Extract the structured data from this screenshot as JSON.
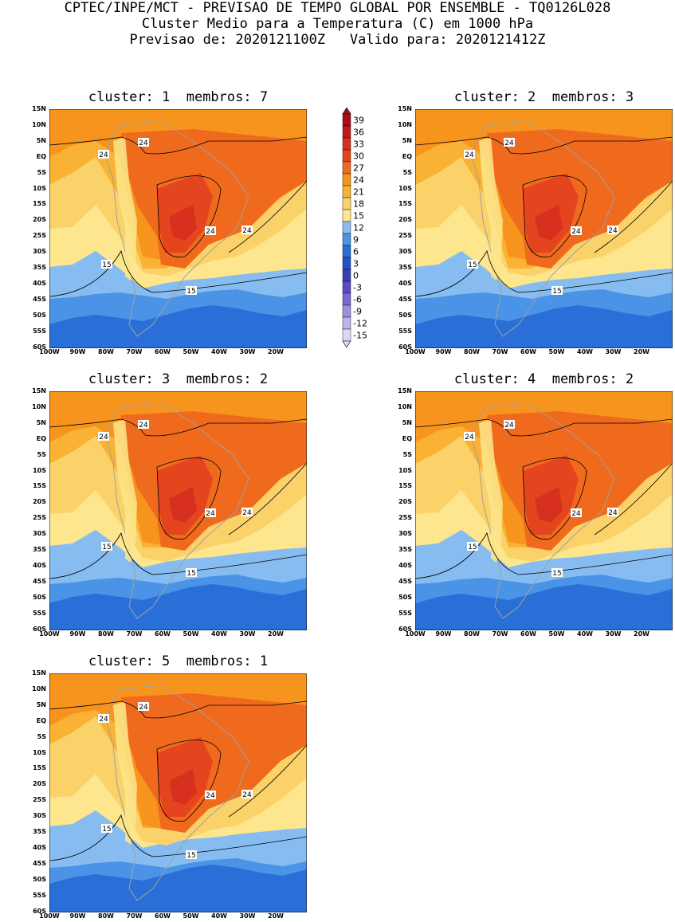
{
  "header": {
    "line1": "CPTEC/INPE/MCT - PREVISAO DE TEMPO GLOBAL POR ENSEMBLE - TQ0126L028",
    "line2": "Cluster Medio para a Temperatura (C) em 1000 hPa",
    "line3": "Previsao de: 2020121100Z   Valido para: 2020121412Z"
  },
  "panels": [
    {
      "title": "cluster: 1  membros: 7",
      "variant": 1
    },
    {
      "title": "cluster: 2  membros: 3",
      "variant": 2
    },
    {
      "title": "cluster: 3  membros: 2",
      "variant": 3
    },
    {
      "title": "cluster: 4  membros: 2",
      "variant": 4
    },
    {
      "title": "cluster: 5  membros: 1",
      "variant": 5
    }
  ],
  "lat_labels": [
    "15N",
    "10N",
    "5N",
    "EQ",
    "5S",
    "10S",
    "15S",
    "20S",
    "25S",
    "30S",
    "35S",
    "40S",
    "45S",
    "50S",
    "55S",
    "60S"
  ],
  "lon_labels": [
    "100W",
    "90W",
    "80W",
    "70W",
    "60W",
    "50W",
    "40W",
    "30W",
    "20W"
  ],
  "contour_labels": {
    "warm": "24",
    "cool": "15"
  },
  "colorbar": {
    "levels": [
      "39",
      "36",
      "33",
      "30",
      "27",
      "24",
      "21",
      "18",
      "15",
      "12",
      "9",
      "6",
      "3",
      "0",
      "-3",
      "-6",
      "-9",
      "-12",
      "-15"
    ],
    "colors": [
      "#a50f15",
      "#c01a1a",
      "#d7301f",
      "#e4441e",
      "#f06a1e",
      "#f7941d",
      "#f9b233",
      "#fbd26a",
      "#fde68d",
      "#86bcf0",
      "#4a93e6",
      "#2a6fd8",
      "#2353c8",
      "#3d3fb8",
      "#5a4ac6",
      "#7b68d3",
      "#9d8fdf",
      "#bdb2ea",
      "#ddd5f5"
    ]
  }
}
